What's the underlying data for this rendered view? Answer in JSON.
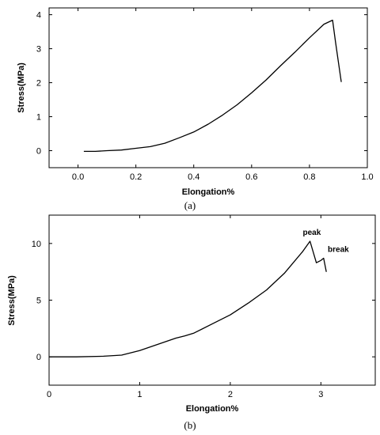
{
  "chart_data": [
    {
      "type": "line",
      "panel_label": "(a)",
      "title": "",
      "xlabel": "Elongation%",
      "ylabel": "Stress(MPa)",
      "xlim": [
        -0.1,
        1.0
      ],
      "ylim": [
        -0.5,
        4.2
      ],
      "x_ticks": [
        0.0,
        0.2,
        0.4,
        0.6,
        0.8,
        1.0
      ],
      "x_tick_labels": [
        "0.0",
        "0.2",
        "0.4",
        "0.6",
        "0.8",
        "1.0"
      ],
      "y_ticks": [
        0,
        1,
        2,
        3,
        4
      ],
      "y_tick_labels": [
        "0",
        "1",
        "2",
        "3",
        "4"
      ],
      "grid": false,
      "series": [
        {
          "x": [
            0.02,
            0.06,
            0.1,
            0.15,
            0.2,
            0.25,
            0.3,
            0.35,
            0.4,
            0.45,
            0.5,
            0.55,
            0.6,
            0.65,
            0.7,
            0.75,
            0.8,
            0.85,
            0.88,
            0.89,
            0.9,
            0.91
          ],
          "y": [
            -0.02,
            -0.02,
            0.0,
            0.02,
            0.07,
            0.12,
            0.22,
            0.38,
            0.55,
            0.78,
            1.05,
            1.35,
            1.7,
            2.08,
            2.5,
            2.9,
            3.32,
            3.72,
            3.84,
            3.2,
            2.6,
            2.02
          ]
        }
      ]
    },
    {
      "type": "line",
      "panel_label": "(b)",
      "title": "",
      "xlabel": "Elongation%",
      "ylabel": "Stress(MPa)",
      "xlim": [
        0,
        3.6
      ],
      "ylim": [
        -2.5,
        12.5
      ],
      "x_ticks": [
        0,
        1,
        2,
        3
      ],
      "x_tick_labels": [
        "0",
        "1",
        "2",
        "3"
      ],
      "y_ticks": [
        0,
        5,
        10
      ],
      "y_tick_labels": [
        "0",
        "5",
        "10"
      ],
      "grid": false,
      "annotations": [
        {
          "text": "peak",
          "x": 2.9,
          "y": 10.2
        },
        {
          "text": "break",
          "x": 3.05,
          "y": 8.7
        }
      ],
      "series": [
        {
          "x": [
            0.0,
            0.3,
            0.6,
            0.8,
            1.0,
            1.2,
            1.4,
            1.5,
            1.6,
            1.8,
            2.0,
            2.2,
            2.4,
            2.6,
            2.8,
            2.88,
            2.95,
            3.0,
            3.03,
            3.06
          ],
          "y": [
            0.0,
            0.0,
            0.05,
            0.15,
            0.55,
            1.1,
            1.65,
            1.85,
            2.1,
            2.9,
            3.7,
            4.75,
            5.9,
            7.4,
            9.3,
            10.2,
            8.3,
            8.5,
            8.7,
            7.5
          ]
        }
      ]
    }
  ]
}
